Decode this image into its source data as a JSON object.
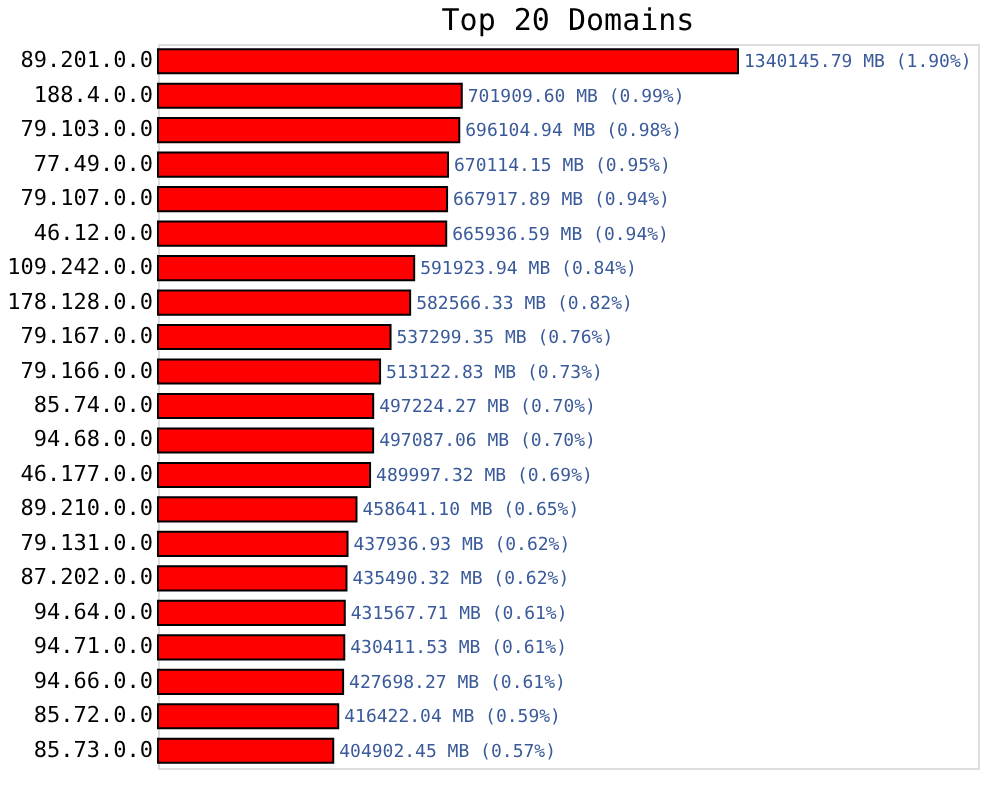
{
  "chart_data": {
    "type": "bar",
    "orientation": "horizontal",
    "title": "Top 20 Domains",
    "categories": [
      "89.201.0.0",
      "188.4.0.0",
      "79.103.0.0",
      "77.49.0.0",
      "79.107.0.0",
      "46.12.0.0",
      "109.242.0.0",
      "178.128.0.0",
      "79.167.0.0",
      "79.166.0.0",
      "85.74.0.0",
      "94.68.0.0",
      "46.177.0.0",
      "89.210.0.0",
      "79.131.0.0",
      "87.202.0.0",
      "94.64.0.0",
      "94.71.0.0",
      "94.66.0.0",
      "85.72.0.0",
      "85.73.0.0"
    ],
    "values": [
      1340145.79,
      701909.6,
      696104.94,
      670114.15,
      667917.89,
      665936.59,
      591923.94,
      582566.33,
      537299.35,
      513122.83,
      497224.27,
      497087.06,
      489997.32,
      458641.1,
      437936.93,
      435490.32,
      431567.71,
      430411.53,
      427698.27,
      416422.04,
      404902.45
    ],
    "value_labels": [
      "1340145.79 MB (1.90%)",
      "701909.60 MB (0.99%)",
      "696104.94 MB (0.98%)",
      "670114.15 MB (0.95%)",
      "667917.89 MB (0.94%)",
      "665936.59 MB (0.94%)",
      "591923.94 MB (0.84%)",
      "582566.33 MB (0.82%)",
      "537299.35 MB (0.76%)",
      "513122.83 MB (0.73%)",
      "497224.27 MB (0.70%)",
      "497087.06 MB (0.70%)",
      "489997.32 MB (0.69%)",
      "458641.10 MB (0.65%)",
      "437936.93 MB (0.62%)",
      "435490.32 MB (0.62%)",
      "431567.71 MB (0.61%)",
      "430411.53 MB (0.61%)",
      "427698.27 MB (0.61%)",
      "416422.04 MB (0.59%)",
      "404902.45 MB (0.57%)"
    ],
    "color": "#ff0000"
  }
}
